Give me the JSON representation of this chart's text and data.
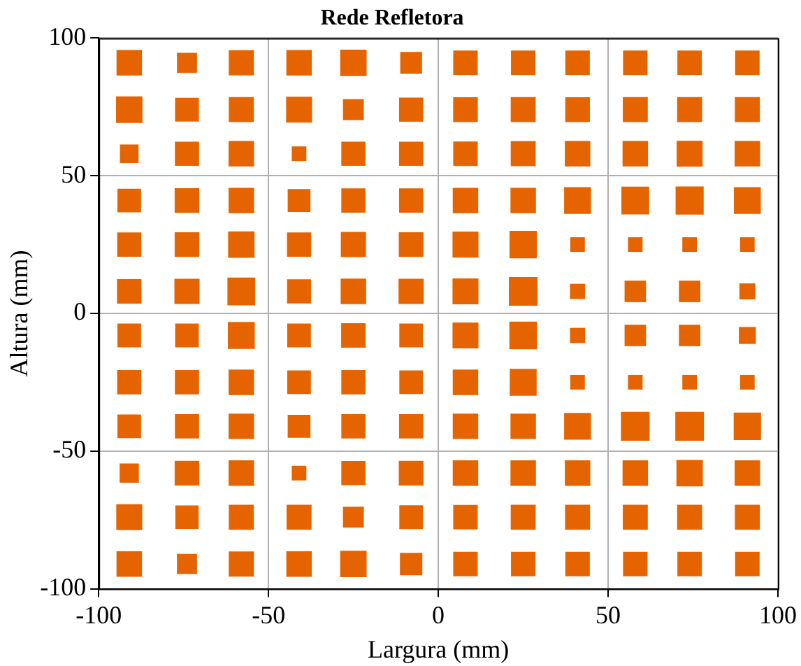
{
  "chart_data": {
    "type": "bubble",
    "title": "Rede Refletora",
    "xlabel": "Largura (mm)",
    "ylabel": "Altura (mm)",
    "xlim": [
      -100,
      100
    ],
    "ylim": [
      -100,
      100
    ],
    "xticks": [
      -100,
      -50,
      0,
      50,
      100
    ],
    "yticks": [
      -100,
      -50,
      0,
      50,
      100
    ],
    "grid": true,
    "marker": "square",
    "legend": false,
    "series": [
      {
        "color": "#e66400",
        "x": [
          -91,
          -74,
          -58,
          -41,
          -25,
          -8,
          8,
          25,
          41,
          58,
          74,
          91,
          -91,
          -74,
          -58,
          -41,
          -25,
          -8,
          8,
          25,
          41,
          58,
          74,
          91,
          -91,
          -74,
          -58,
          -41,
          -25,
          -8,
          8,
          25,
          41,
          58,
          74,
          91,
          -91,
          -74,
          -58,
          -41,
          -25,
          -8,
          8,
          25,
          41,
          58,
          74,
          91,
          -91,
          -74,
          -58,
          -41,
          -25,
          -8,
          8,
          25,
          41,
          58,
          74,
          91,
          -91,
          -74,
          -58,
          -41,
          -25,
          -8,
          8,
          25,
          41,
          58,
          74,
          91,
          -91,
          -74,
          -58,
          -41,
          -25,
          -8,
          8,
          25,
          41,
          58,
          74,
          91,
          -91,
          -74,
          -58,
          -41,
          -25,
          -8,
          8,
          25,
          41,
          58,
          74,
          91,
          -91,
          -74,
          -58,
          -41,
          -25,
          -8,
          8,
          25,
          41,
          58,
          74,
          91,
          -91,
          -74,
          -58,
          -41,
          -25,
          -8,
          8,
          25,
          41,
          58,
          74,
          91,
          -91,
          -74,
          -58,
          -41,
          -25,
          -8,
          8,
          25,
          41,
          58,
          74,
          91,
          -91,
          -74,
          -58,
          -41,
          -25,
          -8,
          8,
          25,
          41,
          58,
          74,
          91
        ],
        "values": [
          91,
          91,
          91,
          91,
          91,
          91,
          91,
          91,
          91,
          91,
          91,
          91,
          74,
          74,
          74,
          74,
          74,
          74,
          74,
          74,
          74,
          74,
          74,
          74,
          58,
          58,
          58,
          58,
          58,
          58,
          58,
          58,
          58,
          58,
          58,
          58,
          41,
          41,
          41,
          41,
          41,
          41,
          41,
          41,
          41,
          41,
          41,
          41,
          25,
          25,
          25,
          25,
          25,
          25,
          25,
          25,
          25,
          25,
          25,
          25,
          8,
          8,
          8,
          8,
          8,
          8,
          8,
          8,
          8,
          8,
          8,
          8,
          -8,
          -8,
          -8,
          -8,
          -8,
          -8,
          -8,
          -8,
          -8,
          -8,
          -8,
          -8,
          -25,
          -25,
          -25,
          -25,
          -25,
          -25,
          -25,
          -25,
          -25,
          -25,
          -25,
          -25,
          -41,
          -41,
          -41,
          -41,
          -41,
          -41,
          -41,
          -41,
          -41,
          -41,
          -41,
          -41,
          -58,
          -58,
          -58,
          -58,
          -58,
          -58,
          -58,
          -58,
          -58,
          -58,
          -58,
          -58,
          -74,
          -74,
          -74,
          -74,
          -74,
          -74,
          -74,
          -74,
          -74,
          -74,
          -74,
          -74,
          -91,
          -91,
          -91,
          -91,
          -91,
          -91,
          -91,
          -91,
          -91,
          -91,
          -91,
          -91
        ],
        "sizes": [
          0.79,
          0.49,
          0.77,
          0.79,
          0.85,
          0.58,
          0.73,
          0.73,
          0.73,
          0.73,
          0.73,
          0.73,
          0.85,
          0.69,
          0.76,
          0.82,
          0.53,
          0.71,
          0.74,
          0.76,
          0.74,
          0.76,
          0.76,
          0.76,
          0.42,
          0.71,
          0.79,
          0.26,
          0.71,
          0.71,
          0.73,
          0.76,
          0.79,
          0.79,
          0.82,
          0.79,
          0.68,
          0.74,
          0.79,
          0.63,
          0.71,
          0.71,
          0.79,
          0.79,
          0.88,
          0.94,
          0.96,
          0.88,
          0.71,
          0.74,
          0.85,
          0.71,
          0.77,
          0.74,
          0.82,
          0.91,
          0.26,
          0.26,
          0.26,
          0.26,
          0.73,
          0.77,
          0.94,
          0.7,
          0.79,
          0.77,
          0.82,
          1,
          0.28,
          0.56,
          0.56,
          0.31,
          0.68,
          0.68,
          0.88,
          0.68,
          0.73,
          0.68,
          0.82,
          0.93,
          0.28,
          0.56,
          0.56,
          0.35,
          0.71,
          0.71,
          0.79,
          0.68,
          0.71,
          0.68,
          0.79,
          0.88,
          0.26,
          0.26,
          0.26,
          0.26,
          0.68,
          0.71,
          0.79,
          0.63,
          0.71,
          0.71,
          0.79,
          0.79,
          0.88,
          1,
          1,
          0.91,
          0.45,
          0.74,
          0.79,
          0.26,
          0.71,
          0.74,
          0.79,
          0.79,
          0.79,
          0.79,
          0.85,
          0.79,
          0.82,
          0.66,
          0.76,
          0.76,
          0.53,
          0.68,
          0.73,
          0.76,
          0.76,
          0.76,
          0.76,
          0.76,
          0.79,
          0.49,
          0.77,
          0.79,
          0.85,
          0.61,
          0.73,
          0.73,
          0.73,
          0.73,
          0.73,
          0.73
        ]
      }
    ]
  }
}
